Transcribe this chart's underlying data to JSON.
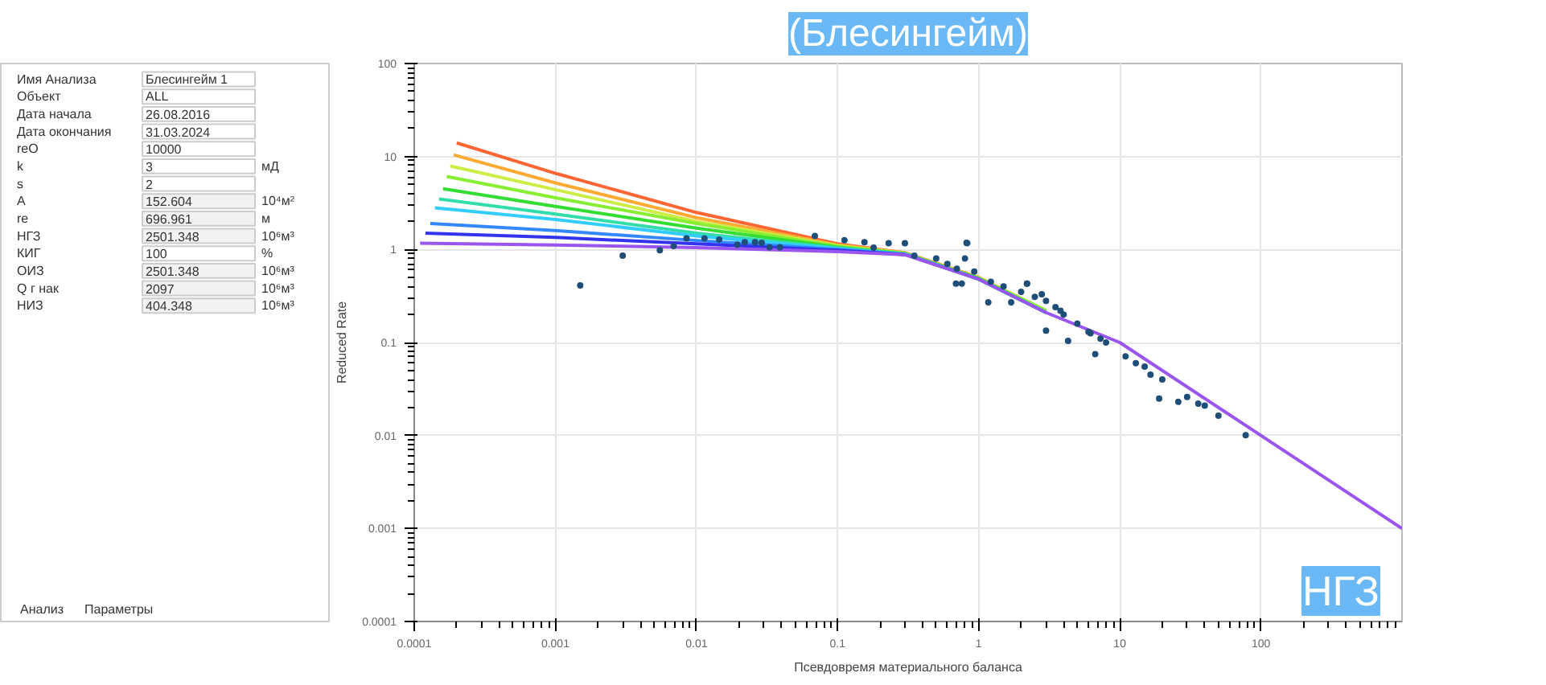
{
  "chart_data": [
    {
      "type": "other",
      "y_categories": [
        "Имя Анализа",
        "Объект",
        "Дата начала",
        "Дата окончания",
        "reO",
        "k",
        "s",
        "A",
        "re",
        "НГЗ",
        "КИГ",
        "ОИЗ",
        "Q г нак",
        "НИЗ"
      ],
      "cell_labels": [
        [
          "Блесингейм 1",
          null
        ],
        [
          "ALL",
          null
        ],
        [
          "26.08.2016",
          null
        ],
        [
          "31.03.2024",
          null
        ],
        [
          "10000",
          null
        ],
        [
          "3",
          "мД"
        ],
        [
          "2",
          null
        ],
        [
          "152.604",
          "10⁴м²"
        ],
        [
          "696.961",
          "м"
        ],
        [
          "2501.348",
          "10⁶м³"
        ],
        [
          "100",
          "%"
        ],
        [
          "2501.348",
          "10⁶м³"
        ],
        [
          "2097",
          "10⁶м³"
        ],
        [
          "404.348",
          "10⁶м³"
        ]
      ],
      "annotations": [
        "Анализ",
        "Параметры"
      ]
    },
    {
      "type": "line",
      "title": "(Блесингейм)",
      "xlabel": "Псевдовремя материального баланса",
      "ylabel": "Reduced Rate",
      "log": "xy",
      "grid": true,
      "xlim": [
        0.0001,
        1000
      ],
      "ylim": [
        0.0001,
        100
      ],
      "xticks": [
        0.0001,
        0.001,
        0.01,
        0.1,
        1,
        10,
        100
      ],
      "yticks": [
        0.0001,
        0.001,
        0.01,
        0.1,
        1,
        10,
        100
      ],
      "annotations": [
        "НГЗ"
      ],
      "series": [
        {
          "color": "#ff6633",
          "x": [
            0.0002,
            0.001,
            0.01,
            0.1,
            0.3,
            1
          ],
          "values": [
            14,
            6.6,
            2.5,
            1.15,
            0.92,
            0.5
          ]
        },
        {
          "color": "#ffaa33",
          "x": [
            0.00019,
            0.001,
            0.01,
            0.1,
            0.3,
            1,
            3
          ],
          "values": [
            10.4,
            5.2,
            2.2,
            1.12,
            0.92,
            0.5,
            0.22
          ]
        },
        {
          "color": "#ccee44",
          "x": [
            0.00018,
            0.001,
            0.01,
            0.1,
            0.3,
            1,
            3
          ],
          "values": [
            7.9,
            4.4,
            2.0,
            1.1,
            0.91,
            0.49,
            0.22
          ]
        },
        {
          "color": "#88ee33",
          "x": [
            0.00017,
            0.001,
            0.01,
            0.1,
            0.3,
            1,
            3
          ],
          "values": [
            6.1,
            3.6,
            1.9,
            1.08,
            0.91,
            0.49,
            0.22
          ]
        },
        {
          "color": "#33dd33",
          "x": [
            0.00016,
            0.001,
            0.01,
            0.1,
            0.3,
            1,
            3
          ],
          "values": [
            4.5,
            2.9,
            1.7,
            1.06,
            0.9,
            0.49,
            0.21
          ]
        },
        {
          "color": "#33ddaa",
          "x": [
            0.00015,
            0.001,
            0.01,
            0.1,
            0.3,
            1,
            3
          ],
          "values": [
            3.5,
            2.4,
            1.5,
            1.04,
            0.9,
            0.48,
            0.21
          ]
        },
        {
          "color": "#33ccff",
          "x": [
            0.00014,
            0.001,
            0.01,
            0.1,
            0.3,
            1,
            3
          ],
          "values": [
            2.8,
            2.1,
            1.4,
            1.02,
            0.89,
            0.48,
            0.21
          ]
        },
        {
          "color": "#3388ff",
          "x": [
            0.00013,
            0.001,
            0.01,
            0.1,
            0.3,
            1,
            3
          ],
          "values": [
            1.9,
            1.6,
            1.25,
            1.0,
            0.89,
            0.48,
            0.21
          ]
        },
        {
          "color": "#3333ee",
          "x": [
            0.00012,
            0.001,
            0.01,
            0.1,
            0.3
          ],
          "values": [
            1.5,
            1.35,
            1.15,
            0.98,
            0.88
          ]
        },
        {
          "color": "#9955ee",
          "x": [
            0.00011,
            0.001,
            0.01,
            0.1,
            0.3,
            1,
            3,
            10,
            100,
            1000
          ],
          "values": [
            1.17,
            1.12,
            1.05,
            0.95,
            0.88,
            0.48,
            0.21,
            0.1,
            0.01,
            0.001
          ]
        },
        {
          "type": "scatter",
          "marker": "circle",
          "color": "#1f4e79",
          "x": [
            0.0015,
            0.003,
            0.0055,
            0.0069,
            0.0085,
            0.0114,
            0.0145,
            0.0195,
            0.022,
            0.026,
            0.029,
            0.033,
            0.039,
            0.069,
            0.112,
            0.155,
            0.18,
            0.23,
            0.3,
            0.35,
            0.83,
            0.8,
            0.76,
            0.93,
            1.22,
            2.2,
            2.8,
            3.8,
            0.82,
            0.69,
            1.17,
            1.7,
            2.2,
            3.0,
            4.3,
            6.2,
            6.7,
            7.3,
            11,
            16.5,
            19,
            26,
            36,
            50,
            78,
            0.5,
            0.6,
            0.7,
            1.5,
            2,
            2.5,
            3,
            3.5,
            4,
            5,
            6,
            8,
            13,
            15,
            20,
            30,
            40
          ],
          "values": [
            0.41,
            0.86,
            0.98,
            1.09,
            1.32,
            1.32,
            1.28,
            1.13,
            1.2,
            1.2,
            1.18,
            1.06,
            1.06,
            1.4,
            1.26,
            1.2,
            1.05,
            1.17,
            1.17,
            0.86,
            1.17,
            0.8,
            0.43,
            0.58,
            0.45,
            0.43,
            0.33,
            0.22,
            1.18,
            0.43,
            0.27,
            0.27,
            0.43,
            0.134,
            0.104,
            0.126,
            0.075,
            0.11,
            0.071,
            0.045,
            0.025,
            0.023,
            0.022,
            0.0163,
            0.0101,
            0.8,
            0.7,
            0.62,
            0.4,
            0.35,
            0.31,
            0.28,
            0.24,
            0.2,
            0.16,
            0.13,
            0.1,
            0.06,
            0.055,
            0.04,
            0.026,
            0.021
          ]
        }
      ]
    }
  ]
}
